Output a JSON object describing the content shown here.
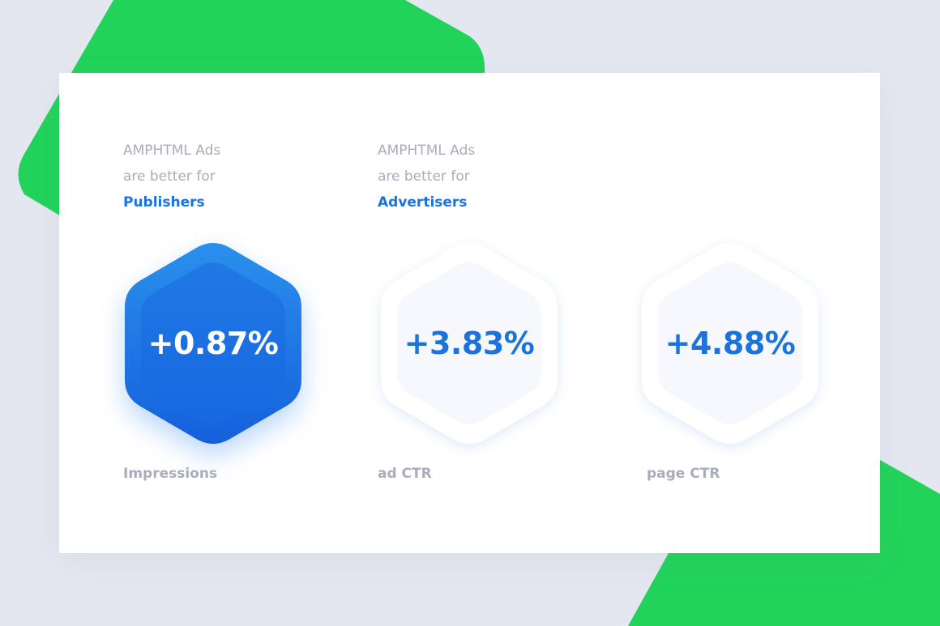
{
  "colors": {
    "background": "#e4e6f0",
    "green_shape": "#22d35a",
    "card": "#ffffff",
    "accent_blue": "#1c73db",
    "muted_text": "#a9adbb"
  },
  "sections": [
    {
      "line1": "AMPHTML Ads",
      "line2": "are better for",
      "highlight": "Publishers"
    },
    {
      "line1": "AMPHTML Ads",
      "line2": "are better for",
      "highlight": "Advertisers"
    }
  ],
  "metrics": [
    {
      "value": "+0.87%",
      "label": "Impressions",
      "active": true
    },
    {
      "value": "+3.83%",
      "label": "ad CTR",
      "active": false
    },
    {
      "value": "+4.88%",
      "label": "page CTR",
      "active": false
    }
  ]
}
